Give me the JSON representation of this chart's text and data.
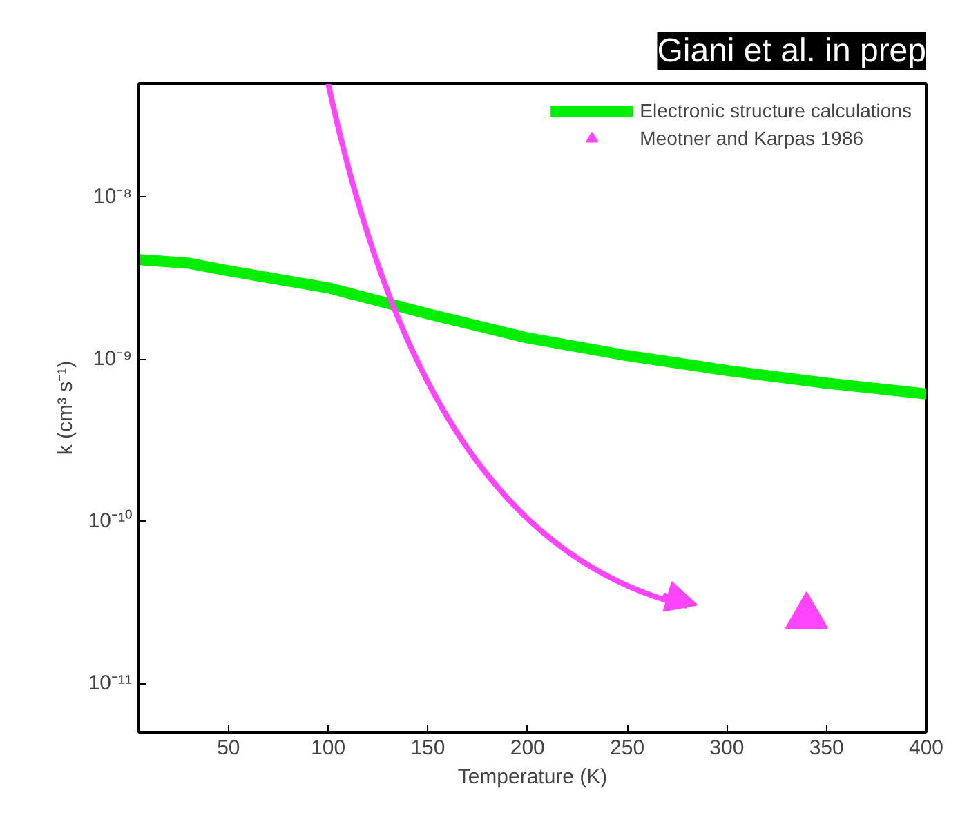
{
  "chart_data": {
    "type": "line",
    "xlabel": "Temperature (K)",
    "ylabel": "k (cm³ s⁻¹)",
    "annotations": [
      "Giani et al. in prep"
    ],
    "series": [
      {
        "name": "Electronic structure calculations",
        "color": "#00ee00",
        "x": [
          5,
          30,
          50,
          100,
          150,
          200,
          250,
          300,
          350,
          400
        ],
        "values": [
          4.1e-09,
          3.9e-09,
          3.5e-09,
          2.75e-09,
          1.9e-09,
          1.35e-09,
          1.05e-09,
          8.5e-10,
          7.1e-10,
          6.1e-10
        ]
      },
      {
        "name": "Meotner and Karpas 1986",
        "color": "#ff44ff",
        "type": "scatter",
        "marker": "triangle",
        "x": [
          340
        ],
        "values": [
          2.6e-11
        ]
      }
    ],
    "xlim": [
      5,
      400
    ],
    "ylim": [
      5e-12,
      5e-08
    ],
    "log": "y",
    "xticks": [
      50,
      100,
      150,
      200,
      250,
      300,
      350,
      400
    ],
    "yticks": [
      {
        "value": 1e-11,
        "label": "10⁻¹¹"
      },
      {
        "value": 1e-10,
        "label": "10⁻¹⁰"
      },
      {
        "value": 1e-09,
        "label": "10⁻⁹"
      },
      {
        "value": 1e-08,
        "label": "10⁻⁸"
      }
    ],
    "grid": false,
    "legend": "top right"
  }
}
